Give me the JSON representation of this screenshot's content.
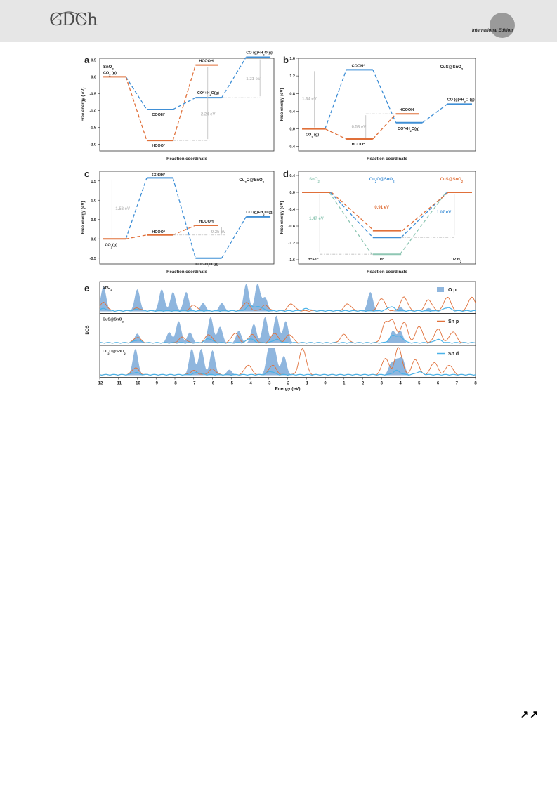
{
  "header": {
    "logo_text": "GDCh",
    "edition_label": "International Edition",
    "arrows_text": "↗↗"
  },
  "colors": {
    "orange": "#e0703a",
    "blue": "#3f8fd6",
    "teal": "#8fc7b4",
    "gray": "#bdbdbd",
    "fill_blue": "#8fb6de",
    "line_blue": "#4ab2e8"
  },
  "chart_data": [
    {
      "panel": "a",
      "type": "energy-diagram",
      "title": "SnO2",
      "xlabel": "Reaction coordinate",
      "ylabel": "Free energy ( eV)",
      "ylim": [
        -2.2,
        0.55
      ],
      "yticks": [
        "0.5",
        "0.0",
        "-0.5",
        "-1.0",
        "-1.5",
        "-2.0"
      ],
      "ytick_values": [
        0.5,
        0.0,
        -0.5,
        -1.0,
        -1.5,
        -2.0
      ],
      "levels": [
        {
          "label": "CO2 (g)",
          "value": 0.0,
          "series": "orange"
        },
        {
          "label": "COOH*",
          "value": -0.97,
          "series": "blue"
        },
        {
          "label": "HCOO*",
          "value": -1.89,
          "series": "orange"
        },
        {
          "label": "HCOOH",
          "value": 0.35,
          "series": "orange"
        },
        {
          "label": "CO*+H2O(g)",
          "value": -0.62,
          "series": "blue"
        },
        {
          "label": "CO (g)+H2O(g)",
          "value": 0.58,
          "series": "blue"
        }
      ],
      "annotations": [
        "2.24 eV",
        "1.21 eV"
      ]
    },
    {
      "panel": "b",
      "type": "energy-diagram",
      "title": "CuS@SnO2",
      "xlabel": "Reaction coordinate",
      "ylabel": "Free energy (eV)",
      "ylim": [
        -0.5,
        1.6
      ],
      "yticks": [
        "1.6",
        "1.2",
        "0.8",
        "0.4",
        "0.0",
        "-0.4"
      ],
      "ytick_values": [
        1.6,
        1.2,
        0.8,
        0.4,
        0.0,
        -0.4
      ],
      "levels": [
        {
          "label": "CO2 (g)",
          "value": 0.0,
          "series": "orange"
        },
        {
          "label": "COOH*",
          "value": 1.34,
          "series": "blue"
        },
        {
          "label": "HCOO*",
          "value": -0.23,
          "series": "orange"
        },
        {
          "label": "HCOOH",
          "value": 0.34,
          "series": "orange"
        },
        {
          "label": "CO*+H2O(g)",
          "value": 0.14,
          "series": "blue"
        },
        {
          "label": "CO (g)+H2O (g)",
          "value": 0.56,
          "series": "blue"
        }
      ],
      "annotations": [
        "1.34 eV",
        "0.58 eV"
      ]
    },
    {
      "panel": "c",
      "type": "energy-diagram",
      "title": "Cu2O@SnO2",
      "xlabel": "Reaction coordinate",
      "ylabel": "Free energy (eV)",
      "ylim": [
        -0.65,
        1.75
      ],
      "yticks": [
        "1.5",
        "1.0",
        "0.5",
        "0.0",
        "-0.5"
      ],
      "ytick_values": [
        1.5,
        1.0,
        0.5,
        0.0,
        -0.5
      ],
      "levels": [
        {
          "label": "CO2(g)",
          "value": 0.0,
          "series": "orange"
        },
        {
          "label": "COOH*",
          "value": 1.58,
          "series": "blue"
        },
        {
          "label": "HCOO*",
          "value": 0.1,
          "series": "orange"
        },
        {
          "label": "HCOOH",
          "value": 0.35,
          "series": "orange"
        },
        {
          "label": "CO*+H2O (g)",
          "value": -0.5,
          "series": "blue"
        },
        {
          "label": "CO (g)+H2O (g)",
          "value": 0.57,
          "series": "blue"
        }
      ],
      "annotations": [
        "1.58 eV",
        "0.25 eV"
      ]
    },
    {
      "panel": "d",
      "type": "energy-diagram",
      "title": "",
      "xlabel": "Reaction coordinate",
      "ylabel": "Free energy (eV)",
      "ylim": [
        -1.7,
        0.5
      ],
      "yticks": [
        "0.4",
        "0.0",
        "-0.4",
        "-0.8",
        "-1.2",
        "-1.6"
      ],
      "ytick_values": [
        0.4,
        0.0,
        -0.4,
        -0.8,
        -1.2,
        -1.6
      ],
      "series": [
        {
          "name": "SnO2",
          "color": "teal",
          "values": [
            0.0,
            -1.47,
            0.0
          ]
        },
        {
          "name": "Cu2O@SnO2",
          "color": "blue",
          "values": [
            0.0,
            -1.07,
            0.0
          ]
        },
        {
          "name": "CuS@SnO2",
          "color": "orange",
          "values": [
            0.0,
            -0.91,
            0.0
          ]
        }
      ],
      "states": [
        "H⁺+e⁻",
        "H*",
        "1/2 H2"
      ],
      "annotations": [
        "1.47 eV",
        "0.91 eV",
        "1.07 eV"
      ]
    },
    {
      "panel": "e",
      "type": "area",
      "xlabel": "Energy (eV)",
      "ylabel": "DOS",
      "xlim": [
        -12,
        8
      ],
      "xticks": [
        "-12",
        "-11",
        "-10",
        "-9",
        "-8",
        "-7",
        "-6",
        "-5",
        "-4",
        "-3",
        "-2",
        "-1",
        "0",
        "1",
        "2",
        "3",
        "4",
        "5",
        "6",
        "7",
        "8"
      ],
      "legend": [
        "O p",
        "Sn p",
        "Sn d"
      ],
      "subpanels": [
        "SnO2",
        "CuS@SnO2",
        "Cu2O@SnO2"
      ],
      "peaks": {
        "O_p": [
          [
            [
              -11.8,
              0.9
            ],
            [
              -10.0,
              0.8
            ],
            [
              -8.7,
              0.8
            ],
            [
              -8.1,
              0.7
            ],
            [
              -7.4,
              0.7
            ],
            [
              -6.5,
              0.3
            ],
            [
              -5.5,
              0.3
            ],
            [
              -4.2,
              1.0
            ],
            [
              -3.6,
              1.0
            ],
            [
              -3.2,
              0.5
            ],
            [
              2.4,
              0.7
            ],
            [
              4.0,
              0.15
            ],
            [
              5.5,
              0.12
            ]
          ],
          [
            [
              -10.0,
              0.35
            ],
            [
              -8.3,
              0.4
            ],
            [
              -7.8,
              0.8
            ],
            [
              -7.2,
              0.4
            ],
            [
              -6.1,
              0.95
            ],
            [
              -5.6,
              0.6
            ],
            [
              -4.6,
              0.45
            ],
            [
              -3.8,
              0.7
            ],
            [
              -3.2,
              0.95
            ],
            [
              -2.6,
              1.0
            ],
            [
              -2.1,
              0.8
            ],
            [
              3.6,
              0.45
            ],
            [
              4.0,
              0.45
            ]
          ],
          [
            [
              -10.1,
              0.95
            ],
            [
              -7.1,
              0.95
            ],
            [
              -6.6,
              0.95
            ],
            [
              -6.0,
              0.9
            ],
            [
              -5.1,
              0.2
            ],
            [
              -3.0,
              0.95
            ],
            [
              -2.7,
              0.9
            ],
            [
              -2.2,
              0.7
            ],
            [
              3.5,
              0.4
            ],
            [
              3.8,
              0.5
            ],
            [
              4.1,
              0.6
            ]
          ]
        ],
        "Sn_p": [
          [
            [
              -11.8,
              0.3
            ],
            [
              -10.0,
              0.1
            ],
            [
              -7.0,
              0.2
            ],
            [
              -4.2,
              0.3
            ],
            [
              -3.2,
              0.2
            ],
            [
              -1.8,
              0.25
            ],
            [
              1.2,
              0.25
            ],
            [
              3.0,
              0.45
            ],
            [
              4.2,
              0.5
            ],
            [
              5.5,
              0.4
            ],
            [
              6.5,
              0.5
            ],
            [
              7.8,
              0.5
            ]
          ],
          [
            [
              -10.0,
              0.2
            ],
            [
              -7.6,
              0.2
            ],
            [
              -6.2,
              0.3
            ],
            [
              -4.8,
              0.35
            ],
            [
              -3.9,
              0.3
            ],
            [
              -2.7,
              0.35
            ],
            [
              -1.9,
              0.3
            ],
            [
              1.0,
              0.3
            ],
            [
              3.2,
              0.7
            ],
            [
              3.6,
              0.75
            ],
            [
              4.2,
              0.75
            ],
            [
              5.0,
              0.6
            ],
            [
              6.0,
              0.5
            ],
            [
              6.8,
              0.4
            ]
          ],
          [
            [
              -10.1,
              0.25
            ],
            [
              -7.0,
              0.15
            ],
            [
              -6.0,
              0.2
            ],
            [
              -4.1,
              0.35
            ],
            [
              -2.8,
              0.35
            ],
            [
              -1.2,
              0.95
            ],
            [
              3.2,
              0.6
            ],
            [
              3.9,
              1.0
            ],
            [
              4.8,
              0.55
            ],
            [
              5.8,
              0.45
            ],
            [
              6.6,
              0.35
            ]
          ]
        ],
        "Sn_d": [
          [
            [
              -11.8,
              0.08
            ],
            [
              -10.0,
              0.06
            ],
            [
              -4.0,
              0.2
            ],
            [
              -3.5,
              0.15
            ],
            [
              -1.0,
              0.08
            ],
            [
              3.5,
              0.15
            ],
            [
              6.5,
              0.12
            ]
          ],
          [
            [
              -10.0,
              0.1
            ],
            [
              -6.2,
              0.15
            ],
            [
              -4.0,
              0.15
            ],
            [
              -2.6,
              0.12
            ],
            [
              3.6,
              0.25
            ],
            [
              4.0,
              0.2
            ],
            [
              6.0,
              0.12
            ]
          ],
          [
            [
              -10.1,
              0.08
            ],
            [
              -6.8,
              0.08
            ],
            [
              -2.9,
              0.12
            ],
            [
              3.8,
              0.15
            ],
            [
              5.0,
              0.1
            ]
          ]
        ]
      }
    }
  ]
}
